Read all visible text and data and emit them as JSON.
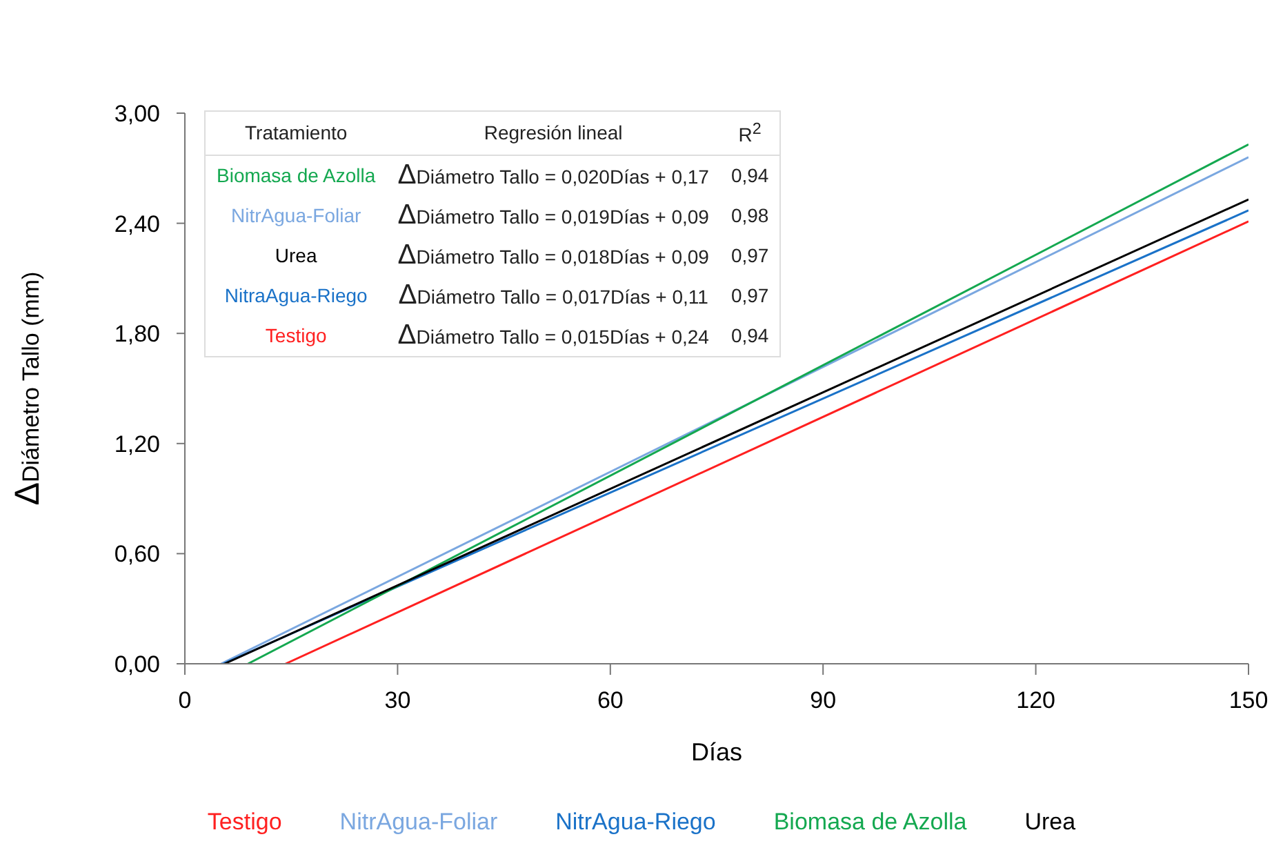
{
  "chart_data": {
    "type": "line",
    "xlabel": "Días",
    "ylabel": "ΔDiámetro Tallo (mm)",
    "xlim": [
      0,
      150
    ],
    "xticks": [
      0,
      30,
      60,
      90,
      120,
      150
    ],
    "ylim": [
      0,
      3
    ],
    "yticks": [
      {
        "value": 0,
        "label": "0,00"
      },
      {
        "value": 0.6,
        "label": "0,60"
      },
      {
        "value": 1.2,
        "label": "1,20"
      },
      {
        "value": 1.8,
        "label": "1,80"
      },
      {
        "value": 2.4,
        "label": "2,40"
      },
      {
        "value": 3,
        "label": "3,00"
      }
    ],
    "grid": false,
    "legend": "bottom",
    "marker": "none",
    "line_style": "solid",
    "series": [
      {
        "name": "Testigo",
        "color": "#ff2020",
        "x": [
          14.2,
          150
        ],
        "values": [
          0,
          2.41
        ]
      },
      {
        "name": "NitrAgua-Foliar",
        "color": "#7aa7e0",
        "x": [
          5.1,
          150
        ],
        "values": [
          0,
          2.76
        ]
      },
      {
        "name": "NitrAgua-Riego",
        "color": "#1a72c8",
        "x": [
          5.4,
          150
        ],
        "values": [
          0,
          2.47
        ]
      },
      {
        "name": "Biomasa de Azolla",
        "color": "#14a850",
        "x": [
          8.9,
          150
        ],
        "values": [
          0,
          2.83
        ]
      },
      {
        "name": "Urea",
        "color": "#000000",
        "x": [
          5.6,
          150
        ],
        "values": [
          0,
          2.53
        ]
      }
    ],
    "annotations": [
      "Tratamiento",
      "Regresión lineal",
      "R$^{2}$",
      "Biomasa de Azolla",
      "ΔDiámetro Tallo = 0,020Días + 0,17",
      "0,94",
      "NitrAgua-Foliar",
      "ΔDiámetro Tallo = 0,019Días + 0,09",
      "0,98",
      "Urea",
      "ΔDiámetro Tallo = 0,018Días + 0,09",
      "0,97",
      "NitraAgua-Riego",
      "ΔDiámetro Tallo = 0,017Días + 0,11",
      "0,97",
      "Testigo",
      "ΔDiámetro Tallo = 0,015Días + 0,24",
      "0,94"
    ]
  }
}
